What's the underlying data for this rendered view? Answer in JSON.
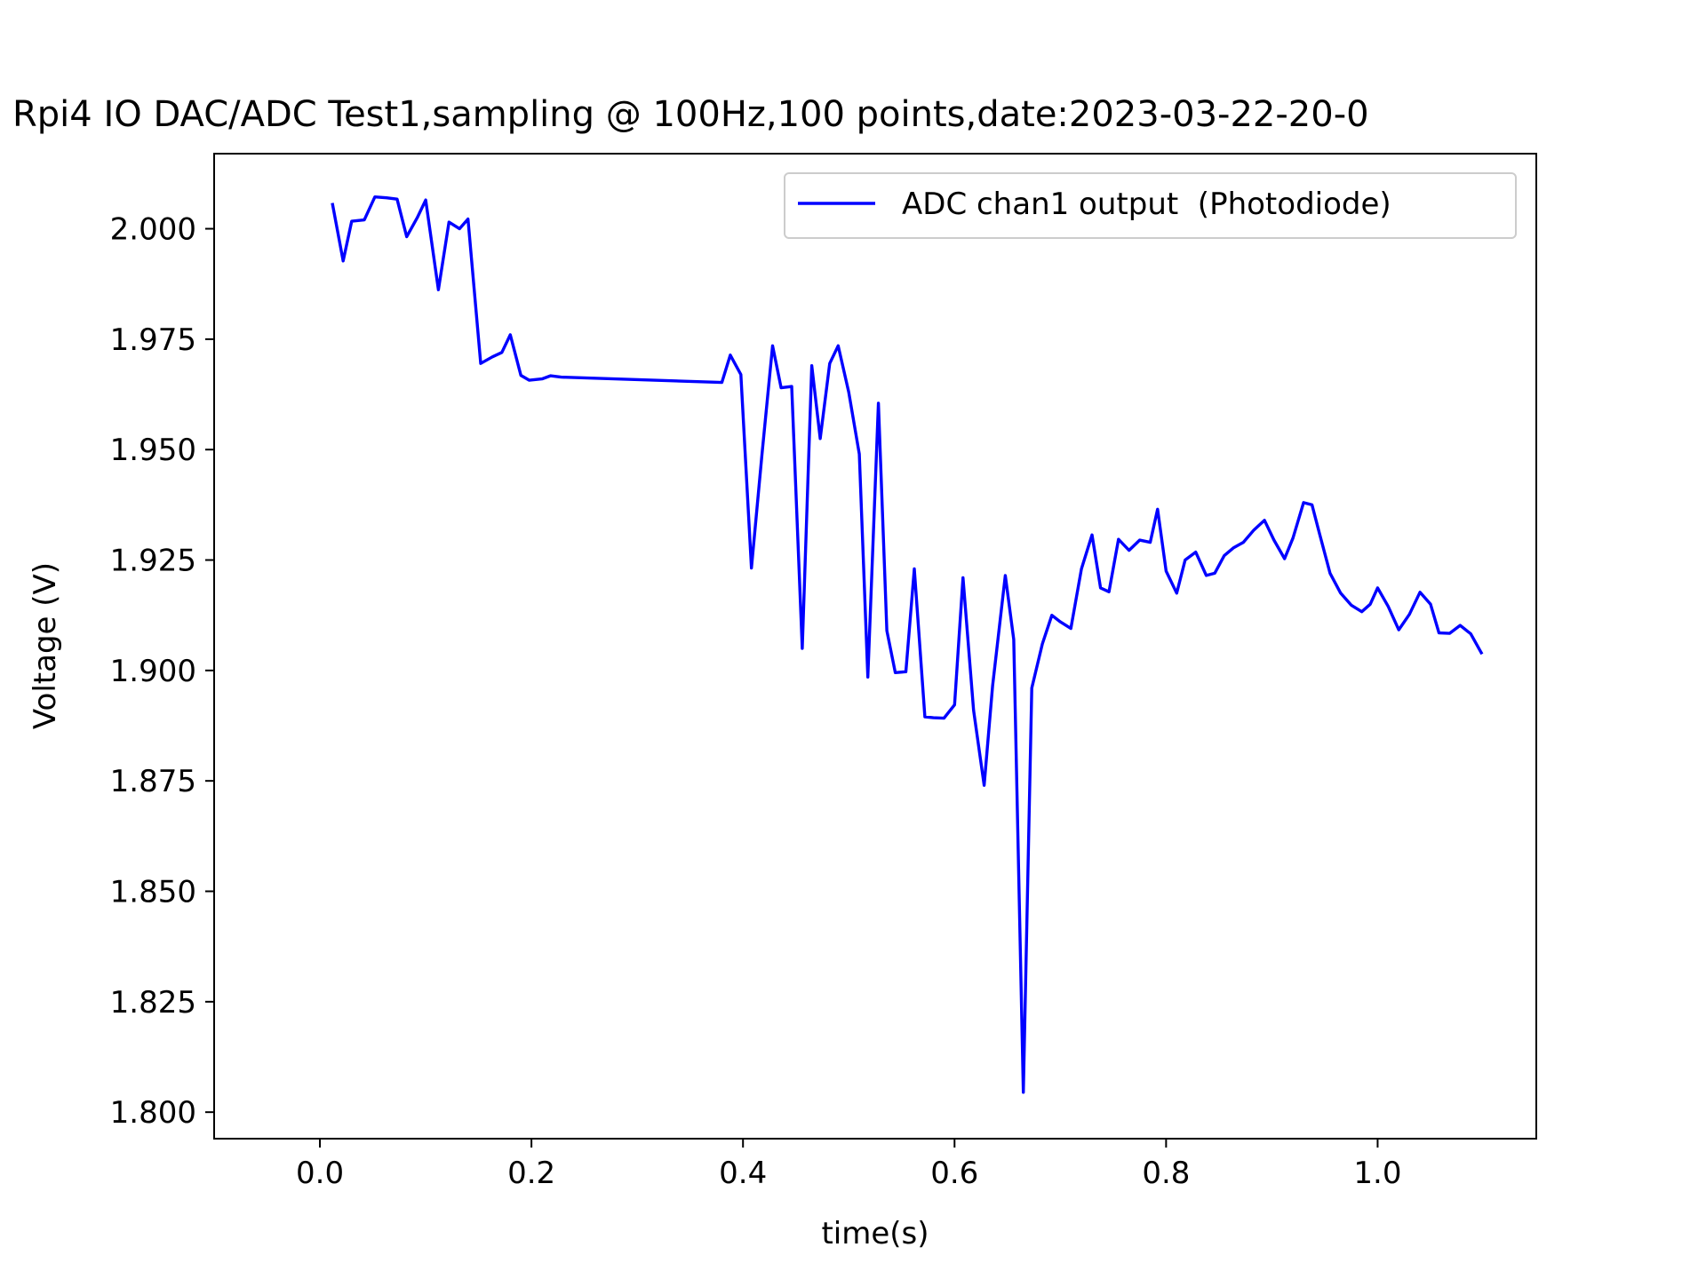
{
  "chart_data": {
    "type": "line",
    "title": "Rpi4 IO DAC/ADC Test1,sampling @ 100Hz,100 points,date:2023-03-22-20-0",
    "xlabel": "time(s)",
    "ylabel": "Voltage (V)",
    "xlim": [
      -0.1,
      1.15
    ],
    "ylim": [
      1.794,
      2.017
    ],
    "xticks": [
      0.0,
      0.2,
      0.4,
      0.6,
      0.8,
      1.0
    ],
    "xtick_labels": [
      "0.0",
      "0.2",
      "0.4",
      "0.6",
      "0.8",
      "1.0"
    ],
    "yticks": [
      1.8,
      1.825,
      1.85,
      1.875,
      1.9,
      1.925,
      1.95,
      1.975,
      2.0
    ],
    "ytick_labels": [
      "1.800",
      "1.825",
      "1.850",
      "1.875",
      "1.900",
      "1.925",
      "1.950",
      "1.975",
      "2.000"
    ],
    "grid": false,
    "legend_position": "upper-right",
    "series": [
      {
        "name": "ADC chan1 output  (Photodiode)",
        "color": "#0000ff",
        "x": [
          0.012,
          0.022,
          0.03,
          0.042,
          0.052,
          0.063,
          0.073,
          0.082,
          0.092,
          0.1,
          0.112,
          0.122,
          0.132,
          0.14,
          0.152,
          0.163,
          0.172,
          0.18,
          0.19,
          0.198,
          0.21,
          0.218,
          0.228,
          0.38,
          0.388,
          0.398,
          0.408,
          0.418,
          0.428,
          0.436,
          0.446,
          0.456,
          0.465,
          0.473,
          0.482,
          0.49,
          0.5,
          0.51,
          0.518,
          0.528,
          0.536,
          0.544,
          0.554,
          0.562,
          0.572,
          0.58,
          0.59,
          0.6,
          0.608,
          0.618,
          0.628,
          0.636,
          0.648,
          0.656,
          0.665,
          0.673,
          0.683,
          0.692,
          0.7,
          0.71,
          0.72,
          0.73,
          0.738,
          0.746,
          0.755,
          0.765,
          0.775,
          0.785,
          0.792,
          0.8,
          0.81,
          0.818,
          0.828,
          0.838,
          0.846,
          0.855,
          0.864,
          0.873,
          0.883,
          0.893,
          0.902,
          0.912,
          0.92,
          0.93,
          0.938,
          0.945,
          0.955,
          0.965,
          0.975,
          0.985,
          0.993,
          1.0,
          1.01,
          1.02,
          1.03,
          1.04,
          1.05,
          1.058,
          1.068,
          1.078,
          1.088,
          1.098
        ],
        "y": [
          2.0055,
          1.9927,
          2.0017,
          2.002,
          2.0072,
          2.007,
          2.0067,
          1.9982,
          2.0025,
          2.0065,
          1.9862,
          2.0015,
          2.0,
          2.0022,
          1.9695,
          1.971,
          1.972,
          1.976,
          1.9668,
          1.9657,
          1.966,
          1.9667,
          1.9664,
          1.9652,
          1.9714,
          1.967,
          1.9232,
          1.949,
          1.9735,
          1.964,
          1.9643,
          1.905,
          1.969,
          1.9525,
          1.9695,
          1.9735,
          1.963,
          1.949,
          1.8985,
          1.9605,
          1.909,
          1.8995,
          1.8997,
          1.923,
          1.8895,
          1.8893,
          1.8892,
          1.8922,
          1.921,
          1.891,
          1.874,
          1.8965,
          1.9215,
          1.907,
          1.8045,
          1.896,
          1.906,
          1.9125,
          1.911,
          1.9095,
          1.923,
          1.9307,
          1.9187,
          1.9178,
          1.9297,
          1.9272,
          1.9295,
          1.929,
          1.9365,
          1.9225,
          1.9175,
          1.925,
          1.9268,
          1.9215,
          1.922,
          1.926,
          1.9278,
          1.929,
          1.9318,
          1.934,
          1.9295,
          1.9253,
          1.93,
          1.938,
          1.9375,
          1.931,
          1.922,
          1.9175,
          1.9148,
          1.9133,
          1.915,
          1.9187,
          1.9145,
          1.9092,
          1.9127,
          1.9177,
          1.915,
          1.9085,
          1.9084,
          1.9102,
          1.9083,
          1.904
        ]
      }
    ]
  }
}
